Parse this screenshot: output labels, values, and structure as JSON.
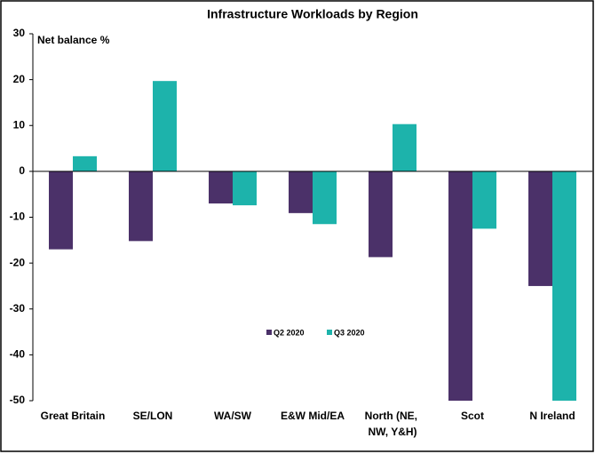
{
  "chart_data": {
    "type": "bar",
    "title": "Infrastructure Workloads by Region",
    "y_label": "Net balance %",
    "categories": [
      "Great Britain",
      "SE/LON",
      "WA/SW",
      "E&W Mid/EA",
      "North (NE, NW, Y&H)",
      "Scot",
      "N Ireland"
    ],
    "series": [
      {
        "name": "Q2 2020",
        "color": "#4b3169",
        "values": [
          -17,
          -15.2,
          -7,
          -9.1,
          -18.7,
          -50,
          -25
        ]
      },
      {
        "name": "Q3 2020",
        "color": "#1db3ab",
        "values": [
          3.3,
          19.7,
          -7.4,
          -11.5,
          10.3,
          -12.5,
          -50
        ]
      }
    ],
    "ylim": [
      -50,
      30
    ],
    "yticks": [
      -50,
      -40,
      -30,
      -20,
      -10,
      0,
      10,
      20,
      30
    ],
    "grid": false
  }
}
